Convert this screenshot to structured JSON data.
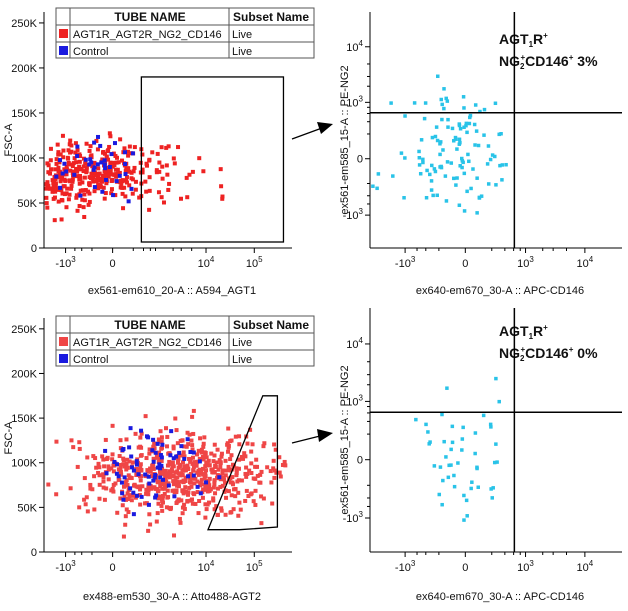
{
  "colors": {
    "sample": "#ee2222",
    "sample_bottom": "#ef4646",
    "control": "#1a1adf",
    "quadrant_events": "#29c3e8",
    "axis": "#000000"
  },
  "legend_table": {
    "col_tube": "TUBE NAME",
    "col_subset": "Subset Name",
    "top_rows": [
      {
        "color_key": "sample",
        "tube": "AGT1R_AGT2R_NG2_CD146",
        "subset": "Live"
      },
      {
        "color_key": "control",
        "tube": "Control",
        "subset": "Live"
      }
    ],
    "bottom_rows": [
      {
        "color_key": "sample_bottom",
        "tube": "AGT1R_AGT2R_NG2_CD146",
        "subset": "Live"
      },
      {
        "color_key": "control",
        "tube": "Control",
        "subset": "Live"
      }
    ]
  },
  "chart_data": [
    {
      "id": "top_left",
      "type": "scatter",
      "xlabel": "ex561-em610_20-A :: A594_AGT1",
      "ylabel": "FSC-A",
      "x_ticks": [
        {
          "v": -1000,
          "t": "-10",
          "sup": "3"
        },
        {
          "v": 0,
          "t": "0",
          "sup": ""
        },
        {
          "v": 10000,
          "t": "10",
          "sup": "4"
        },
        {
          "v": 100000,
          "t": "10",
          "sup": "5"
        }
      ],
      "y_ticks": [
        {
          "v": 0,
          "t": "0"
        },
        {
          "v": 50000,
          "t": "50K"
        },
        {
          "v": 100000,
          "t": "100K"
        },
        {
          "v": 150000,
          "t": "150K"
        },
        {
          "v": 200000,
          "t": "200K"
        },
        {
          "v": 250000,
          "t": "250K"
        }
      ],
      "xscale": "biexponential",
      "ylim": [
        0,
        262144
      ],
      "gate": {
        "shape": "rectangle",
        "x_range": [
          350,
          400000
        ],
        "y_range": [
          0,
          190000
        ]
      },
      "sample_series": {
        "name": "AGT1R_AGT2R_NG2_CD146",
        "seed": 7,
        "n": 420,
        "x_center": -300,
        "x_spread": 0.9,
        "y_center": 82000,
        "y_spread": 18000
      },
      "control_series": {
        "name": "Control",
        "seed": 13,
        "n": 40,
        "x_center": -150,
        "x_spread": 0.45,
        "y_center": 90000,
        "y_spread": 16000
      }
    },
    {
      "id": "top_right",
      "type": "scatter",
      "xlabel": "ex640-em670_30-A :: APC-CD146",
      "ylabel": "ex561-em585_15-A :: PE-NG2",
      "x_ticks": [
        {
          "v": -1000,
          "t": "-10",
          "sup": "3"
        },
        {
          "v": 0,
          "t": "0",
          "sup": ""
        },
        {
          "v": 1000,
          "t": "10",
          "sup": "3"
        },
        {
          "v": 10000,
          "t": "10",
          "sup": "4"
        }
      ],
      "y_ticks": [
        {
          "v": -1000,
          "t": "-10",
          "sup": "3"
        },
        {
          "v": 0,
          "t": "0",
          "sup": ""
        },
        {
          "v": 1000,
          "t": "10",
          "sup": "3"
        },
        {
          "v": 10000,
          "t": "10",
          "sup": "4"
        }
      ],
      "xscale": "biexponential",
      "yscale": "biexponential",
      "quadrant": {
        "x": 620,
        "y": 620
      },
      "annotation": {
        "line1_main": "AGT",
        "line1_sub": "1",
        "line1_tail": "R",
        "line1_sup": "+",
        "line2_a": "NG",
        "line2_a_sub": "2",
        "line2_a_sup": "+",
        "line2_b": "CD146",
        "line2_b_sup": "+",
        "line2_pct": " 3%"
      },
      "events": {
        "name": "Quadrant events",
        "seed": 21,
        "n": 120,
        "x_center": -50,
        "x_spread": 0.5,
        "y_center": 0,
        "y_spread": 0.55
      }
    },
    {
      "id": "bottom_left",
      "type": "scatter",
      "xlabel": "ex488-em530_30-A :: Atto488-AGT2",
      "ylabel": "FSC-A",
      "x_ticks": [
        {
          "v": -1000,
          "t": "-10",
          "sup": "3"
        },
        {
          "v": 0,
          "t": "0",
          "sup": ""
        },
        {
          "v": 10000,
          "t": "10",
          "sup": "4"
        },
        {
          "v": 100000,
          "t": "10",
          "sup": "5"
        }
      ],
      "y_ticks": [
        {
          "v": 0,
          "t": "0"
        },
        {
          "v": 50000,
          "t": "50K"
        },
        {
          "v": 100000,
          "t": "100K"
        },
        {
          "v": 150000,
          "t": "150K"
        },
        {
          "v": 200000,
          "t": "200K"
        },
        {
          "v": 250000,
          "t": "250K"
        }
      ],
      "xscale": "biexponential",
      "ylim": [
        0,
        262144
      ],
      "gate": {
        "shape": "polygon",
        "points": [
          [
            11000,
            25000
          ],
          [
            50000,
            25000
          ],
          [
            300000,
            28000
          ],
          [
            300000,
            175000
          ],
          [
            150000,
            175000
          ]
        ]
      },
      "sample_series": {
        "name": "AGT1R_AGT2R_NG2_CD146",
        "seed": 3,
        "n": 650,
        "x_center": 3000,
        "x_spread": 1.0,
        "y_center": 85000,
        "y_spread": 22000
      },
      "control_series": {
        "name": "Control",
        "seed": 19,
        "n": 70,
        "x_center": 700,
        "x_spread": 0.5,
        "y_center": 95000,
        "y_spread": 22000
      }
    },
    {
      "id": "bottom_right",
      "type": "scatter",
      "xlabel": "ex640-em670_30-A :: APC-CD146",
      "ylabel": "ex561-em585_15-A :: PE-NG2",
      "x_ticks": [
        {
          "v": -1000,
          "t": "-10",
          "sup": "3"
        },
        {
          "v": 0,
          "t": "0",
          "sup": ""
        },
        {
          "v": 1000,
          "t": "10",
          "sup": "3"
        },
        {
          "v": 10000,
          "t": "10",
          "sup": "4"
        }
      ],
      "y_ticks": [
        {
          "v": -1000,
          "t": "-10",
          "sup": "3"
        },
        {
          "v": 0,
          "t": "0",
          "sup": ""
        },
        {
          "v": 1000,
          "t": "10",
          "sup": "3"
        },
        {
          "v": 10000,
          "t": "10",
          "sup": "4"
        }
      ],
      "xscale": "biexponential",
      "yscale": "biexponential",
      "quadrant": {
        "x": 620,
        "y": 620
      },
      "annotation": {
        "line1_main": "AGT",
        "line1_sub": "1",
        "line1_tail": "R",
        "line1_sup": "+",
        "line2_a": "NG",
        "line2_a_sub": "2",
        "line2_a_sup": "+",
        "line2_b": "CD146",
        "line2_b_sup": "+",
        "line2_pct": " 0%"
      },
      "events": {
        "name": "Quadrant events",
        "seed": 31,
        "n": 48,
        "x_center": -50,
        "x_spread": 0.4,
        "y_center": 0,
        "y_spread": 0.55
      }
    }
  ]
}
